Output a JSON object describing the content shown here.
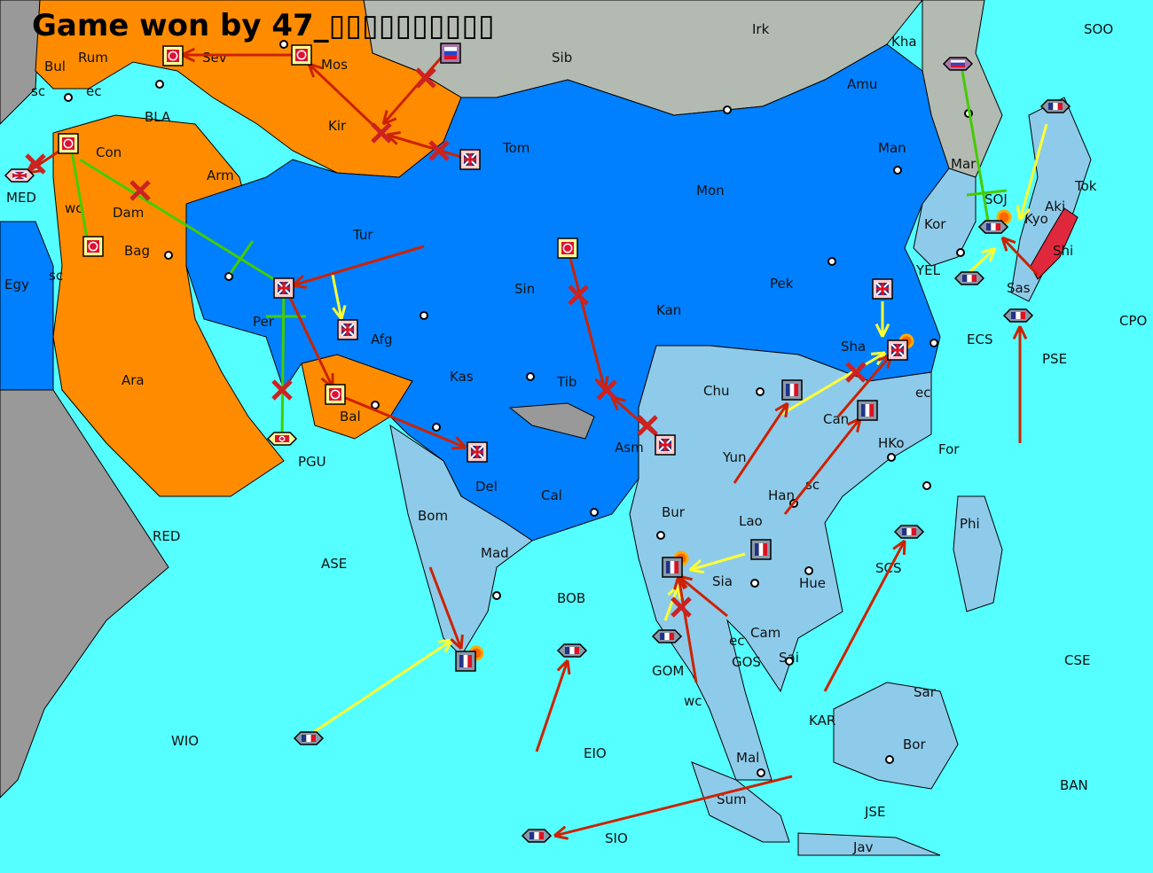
{
  "title": "Game won by 47_▯▯▯▯▯▯▯▯▯▯",
  "colors": {
    "sea": "#55ffff",
    "neutral_land": "#999999",
    "russia": "#b2bab2",
    "turkey": "#ff8c00",
    "britain": "#0080ff",
    "france": "#8ecbea",
    "japan": "#e0283c",
    "order_move": "#cc2200",
    "order_support": "#ffff33",
    "order_convoy": "#44cc00"
  },
  "provinces": [
    "Rum",
    "Sev",
    "Mos",
    "Sib",
    "Irk",
    "Kha",
    "SOO",
    "Bul",
    "sc",
    "ec",
    "BLA",
    "Kir",
    "Tom",
    "Amu",
    "Man",
    "Con",
    "MED",
    "wc",
    "Dam",
    "Arm",
    "Mon",
    "Mar",
    "SOJ",
    "Kyo",
    "Tok",
    "Kor",
    "Aki",
    "Shi",
    "Bag",
    "Tur",
    "Sin",
    "Pek",
    "YEL",
    "Sas",
    "Egy",
    "sc",
    "Per",
    "Afg",
    "Kan",
    "Sha",
    "ECS",
    "CPO",
    "PSE",
    "Ara",
    "Kas",
    "Tib",
    "Chu",
    "ec",
    "Bal",
    "Can",
    "HKo",
    "For",
    "PGU",
    "Asm",
    "Del",
    "Yun",
    "Cal",
    "Han",
    "sc",
    "Bom",
    "RED",
    "Bur",
    "Lao",
    "Phi",
    "ASE",
    "Mad",
    "Sia",
    "Hue",
    "SCS",
    "BOB",
    "Cam",
    "ec",
    "GOS",
    "Sai",
    "GOM",
    "wc",
    "CSE",
    "KAR",
    "Sar",
    "WIO",
    "EIO",
    "Bor",
    "Mal",
    "BAN",
    "Sum",
    "JSE",
    "SIO",
    "Jav"
  ],
  "units": [
    {
      "nation": "turkey",
      "type": "army"
    },
    {
      "nation": "turkey",
      "type": "army"
    },
    {
      "nation": "turkey",
      "type": "army"
    },
    {
      "nation": "turkey",
      "type": "army"
    },
    {
      "nation": "turkey",
      "type": "army"
    },
    {
      "nation": "turkey",
      "type": "army"
    },
    {
      "nation": "turkey",
      "type": "fleet"
    },
    {
      "nation": "russia",
      "type": "army"
    },
    {
      "nation": "russia",
      "type": "fleet"
    },
    {
      "nation": "britain",
      "type": "army"
    },
    {
      "nation": "britain",
      "type": "army"
    },
    {
      "nation": "britain",
      "type": "army"
    },
    {
      "nation": "britain",
      "type": "army"
    },
    {
      "nation": "britain",
      "type": "army"
    },
    {
      "nation": "britain",
      "type": "army"
    },
    {
      "nation": "britain",
      "type": "army"
    },
    {
      "nation": "britain",
      "type": "fleet"
    },
    {
      "nation": "france",
      "type": "army"
    },
    {
      "nation": "france",
      "type": "army"
    },
    {
      "nation": "france",
      "type": "army"
    },
    {
      "nation": "france",
      "type": "army"
    },
    {
      "nation": "france",
      "type": "army"
    },
    {
      "nation": "france",
      "type": "fleet"
    },
    {
      "nation": "france",
      "type": "fleet"
    },
    {
      "nation": "france",
      "type": "fleet"
    },
    {
      "nation": "france",
      "type": "fleet"
    },
    {
      "nation": "france",
      "type": "fleet"
    },
    {
      "nation": "france",
      "type": "fleet"
    },
    {
      "nation": "france",
      "type": "fleet"
    },
    {
      "nation": "france",
      "type": "fleet"
    },
    {
      "nation": "france",
      "type": "fleet"
    }
  ]
}
